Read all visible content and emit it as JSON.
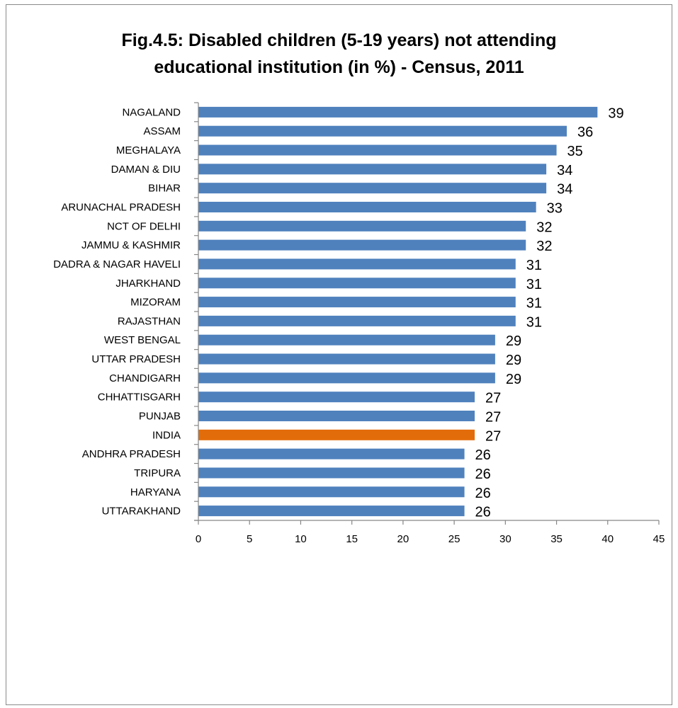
{
  "chart_data": {
    "type": "bar",
    "orientation": "horizontal",
    "title_lines": [
      "Fig.4.5: Disabled children (5-19 years) not attending",
      "educational institution (in %) - Census, 2011"
    ],
    "categories": [
      "NAGALAND",
      "ASSAM",
      "MEGHALAYA",
      "DAMAN & DIU",
      "BIHAR",
      "ARUNACHAL PRADESH",
      "NCT OF DELHI",
      "JAMMU & KASHMIR",
      "DADRA & NAGAR HAVELI",
      "JHARKHAND",
      "MIZORAM",
      "RAJASTHAN",
      "WEST BENGAL",
      "UTTAR PRADESH",
      "CHANDIGARH",
      "CHHATTISGARH",
      "PUNJAB",
      "INDIA",
      "ANDHRA PRADESH",
      "TRIPURA",
      "HARYANA",
      "UTTARAKHAND"
    ],
    "values": [
      39,
      36,
      35,
      34,
      34,
      33,
      32,
      32,
      31,
      31,
      31,
      31,
      29,
      29,
      29,
      27,
      27,
      27,
      26,
      26,
      26,
      26
    ],
    "highlight_category": "INDIA",
    "xlim": [
      0,
      45
    ],
    "xticks": [
      0,
      5,
      10,
      15,
      20,
      25,
      30,
      35,
      40,
      45
    ],
    "grid": false,
    "legend": "none",
    "colors": {
      "bar": "#4f81bd",
      "highlight": "#e36c0a",
      "axis": "#868686"
    }
  }
}
